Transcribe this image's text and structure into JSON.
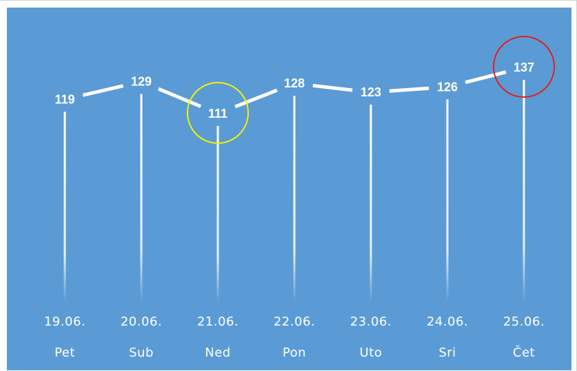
{
  "chart_data": {
    "type": "line",
    "title": "",
    "xlabel": "",
    "ylabel": "",
    "categories": [
      "19.06.",
      "20.06.",
      "21.06.",
      "22.06.",
      "23.06.",
      "24.06.",
      "25.06."
    ],
    "day_labels": [
      "Pet",
      "Sub",
      "Ned",
      "Pon",
      "Uto",
      "Sri",
      "Čet"
    ],
    "series": [
      {
        "values": [
          119,
          129,
          111,
          128,
          123,
          126,
          137
        ]
      }
    ],
    "highlights": [
      {
        "category": "21.06.",
        "meaning": "minimum",
        "color": "#f2f200"
      },
      {
        "category": "25.06.",
        "meaning": "maximum",
        "color": "#e0201b"
      }
    ],
    "background_color": "#5b9bd5",
    "line_color": "#ffffff",
    "grid": false,
    "legend": "none"
  }
}
